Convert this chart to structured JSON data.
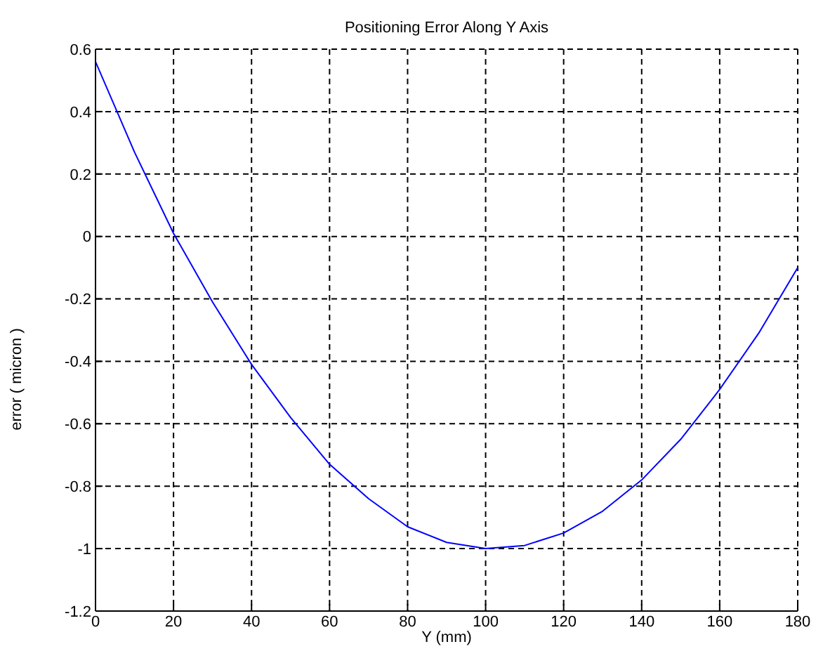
{
  "chart_data": {
    "type": "line",
    "title": "Positioning Error  Along Y Axis",
    "xlabel": "Y (mm)",
    "ylabel": "error ( micron )",
    "x": [
      0,
      10,
      20,
      30,
      40,
      50,
      60,
      70,
      80,
      90,
      100,
      110,
      120,
      130,
      140,
      150,
      160,
      170,
      180
    ],
    "series": [
      {
        "color": "#0000ff",
        "values": [
          0.56,
          0.27,
          0.01,
          -0.21,
          -0.41,
          -0.58,
          -0.73,
          -0.84,
          -0.93,
          -0.98,
          -1.0,
          -0.99,
          -0.95,
          -0.88,
          -0.78,
          -0.65,
          -0.49,
          -0.31,
          -0.1
        ]
      }
    ],
    "xlim": [
      0,
      180
    ],
    "xticks": [
      0,
      20,
      40,
      60,
      80,
      100,
      120,
      140,
      160,
      180
    ],
    "ylim": [
      -1.2,
      0.6
    ],
    "yticks": [
      -1.2,
      -1,
      -0.8,
      -0.6,
      -0.4,
      -0.2,
      0,
      0.2,
      0.4,
      0.6
    ],
    "grid": true,
    "legend": false,
    "marker": "none",
    "line_style": "solid"
  }
}
